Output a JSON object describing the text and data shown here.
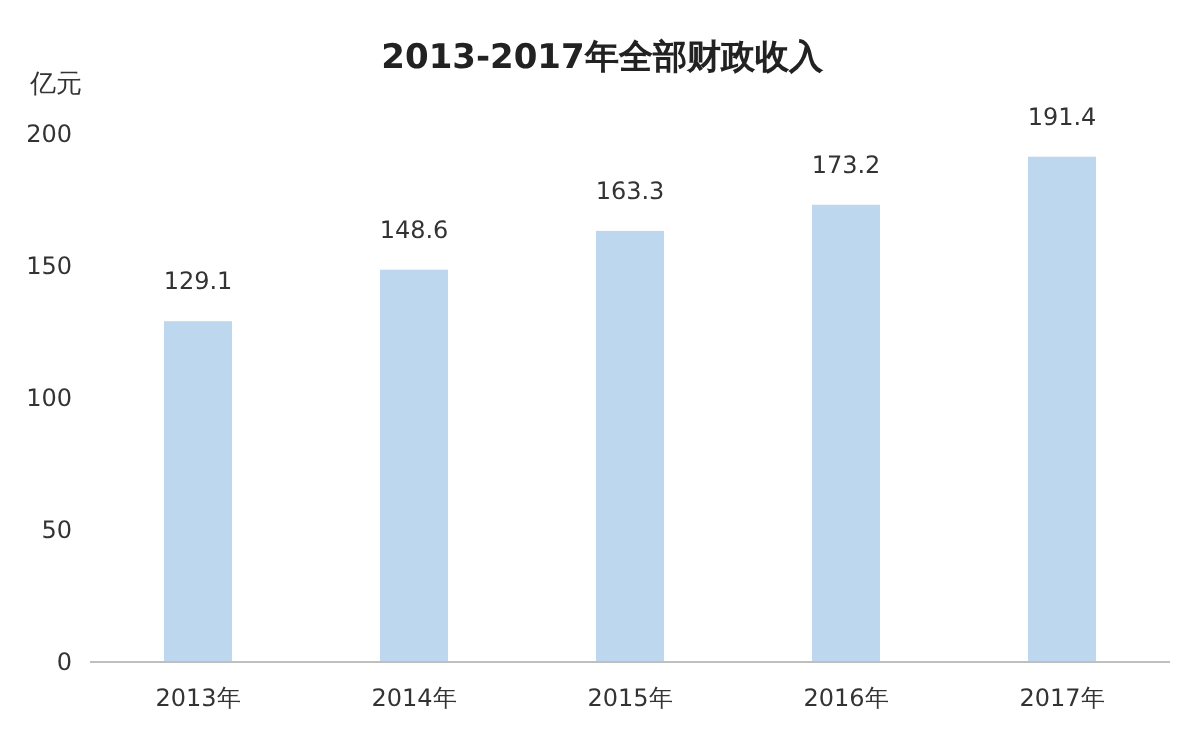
{
  "chart_data": {
    "type": "bar",
    "title": "2013-2017年全部财政收入",
    "ylabel": "亿元",
    "categories": [
      "2013年",
      "2014年",
      "2015年",
      "2016年",
      "2017年"
    ],
    "values": [
      129.1,
      148.6,
      163.3,
      173.2,
      191.4
    ],
    "color": "#bdd7ee",
    "ylim": [
      0,
      200
    ],
    "yticks": [
      0,
      50,
      100,
      150,
      200
    ],
    "grid": false,
    "data_labels": true
  }
}
